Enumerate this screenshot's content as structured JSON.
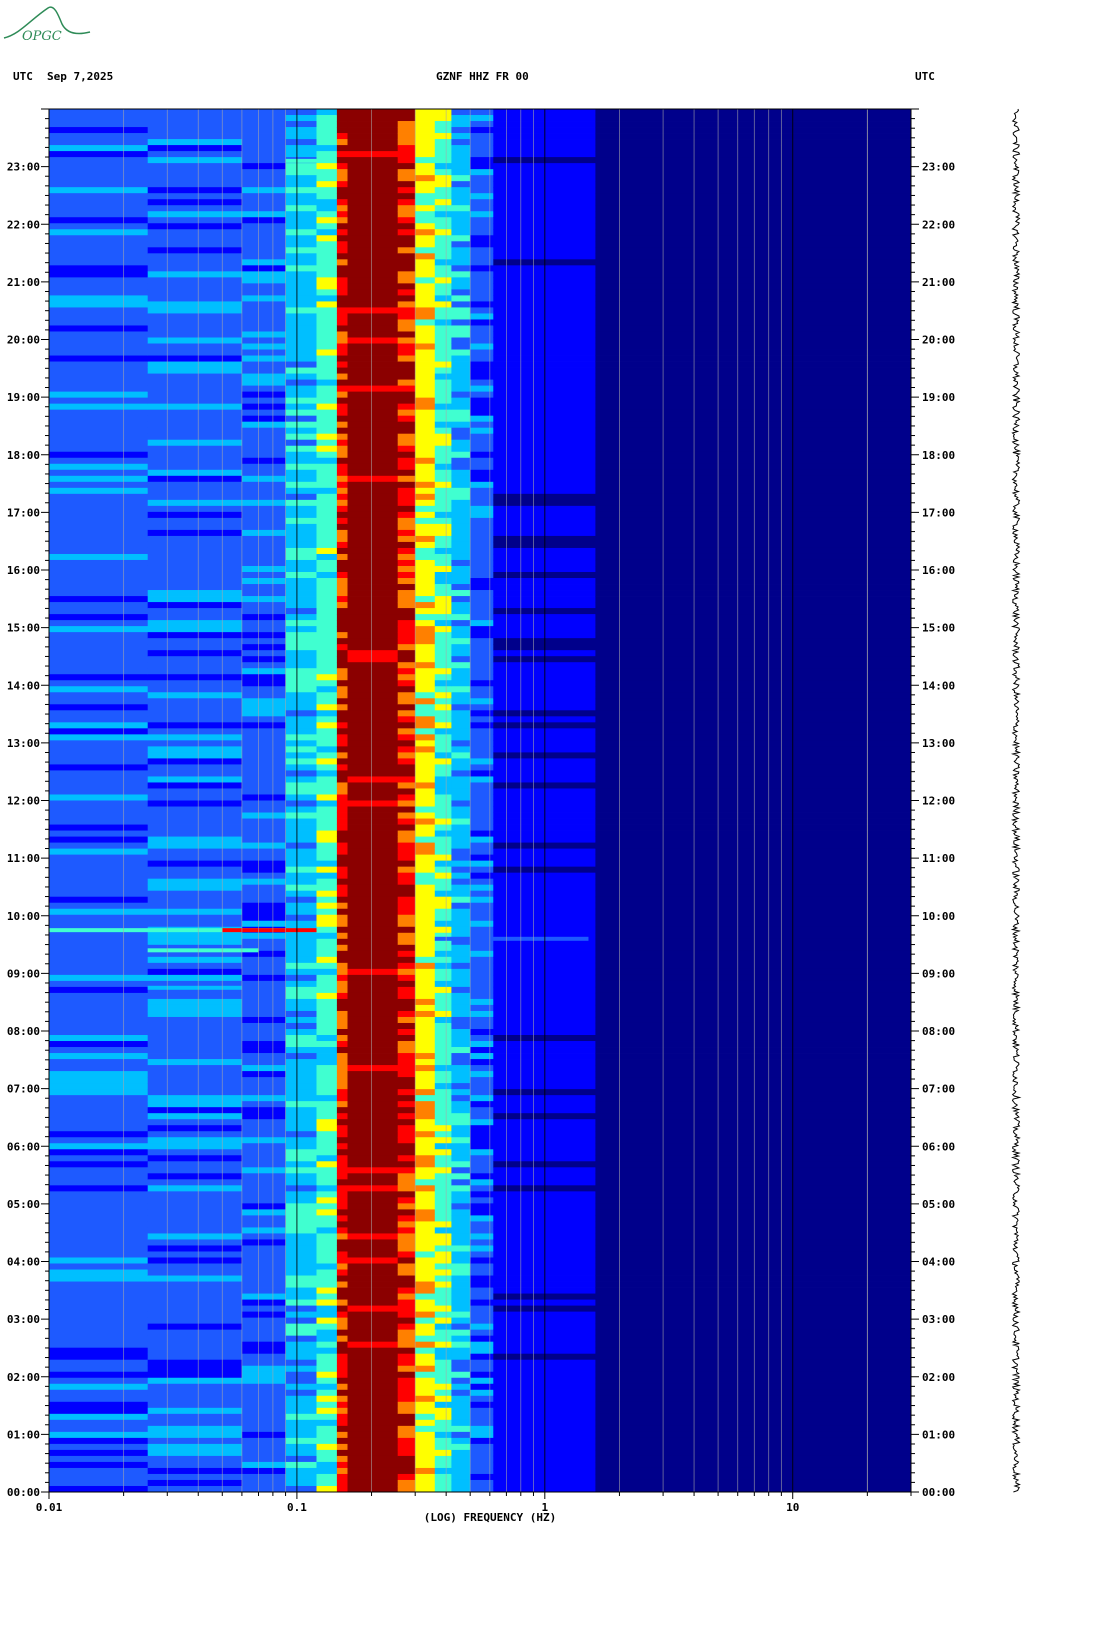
{
  "header": {
    "left_utc": "UTC",
    "date": "Sep 7,2025",
    "station": "GZNF HHZ FR 00",
    "right_utc": "UTC"
  },
  "logo": {
    "text": "OPGC",
    "color": "#2e8b57"
  },
  "chart_data": {
    "type": "heatmap",
    "title": "GZNF HHZ FR 00",
    "xlabel": "(LOG) FREQUENCY (HZ)",
    "x_scale": "log",
    "xlim": [
      0.01,
      30
    ],
    "x_ticks": [
      {
        "value": 0.01,
        "label": "0.01"
      },
      {
        "value": 0.1,
        "label": "0.1"
      },
      {
        "value": 1,
        "label": "1"
      },
      {
        "value": 10,
        "label": "10"
      }
    ],
    "y_ticks_left": [
      "23:00",
      "22:00",
      "21:00",
      "20:00",
      "19:00",
      "18:00",
      "17:00",
      "16:00",
      "15:00",
      "14:00",
      "13:00",
      "12:00",
      "11:00",
      "10:00",
      "09:00",
      "08:00",
      "07:00",
      "06:00",
      "05:00",
      "04:00",
      "03:00",
      "02:00",
      "01:00",
      "00:00"
    ],
    "y_ticks_right": [
      "23:00",
      "22:00",
      "21:00",
      "20:00",
      "19:00",
      "18:00",
      "17:00",
      "16:00",
      "15:00",
      "14:00",
      "13:00",
      "12:00",
      "11:00",
      "10:00",
      "09:00",
      "08:00",
      "07:00",
      "06:00",
      "05:00",
      "04:00",
      "03:00",
      "02:00",
      "01:00",
      "00:00"
    ],
    "ylim_hours": [
      0,
      24
    ],
    "colormap": [
      "#00008b",
      "#0000ff",
      "#1e5aff",
      "#00bfff",
      "#40ffd0",
      "#ffff00",
      "#ff8000",
      "#ff0000",
      "#8b0000"
    ],
    "bands": [
      {
        "from_hz": 0.01,
        "to_hz": 0.025,
        "level": 2
      },
      {
        "from_hz": 0.025,
        "to_hz": 0.06,
        "level": 2
      },
      {
        "from_hz": 0.06,
        "to_hz": 0.09,
        "level": 2
      },
      {
        "from_hz": 0.09,
        "to_hz": 0.12,
        "level": 3
      },
      {
        "from_hz": 0.12,
        "to_hz": 0.145,
        "level": 4
      },
      {
        "from_hz": 0.145,
        "to_hz": 0.16,
        "level": 7
      },
      {
        "from_hz": 0.16,
        "to_hz": 0.255,
        "level": 8
      },
      {
        "from_hz": 0.255,
        "to_hz": 0.3,
        "level": 7
      },
      {
        "from_hz": 0.3,
        "to_hz": 0.36,
        "level": 5
      },
      {
        "from_hz": 0.36,
        "to_hz": 0.42,
        "level": 4
      },
      {
        "from_hz": 0.42,
        "to_hz": 0.5,
        "level": 3
      },
      {
        "from_hz": 0.5,
        "to_hz": 0.62,
        "level": 2
      },
      {
        "from_hz": 0.62,
        "to_hz": 1.6,
        "level": 1
      },
      {
        "from_hz": 1.6,
        "to_hz": 30,
        "level": 0
      }
    ],
    "events": [
      {
        "hour": 9.75,
        "from_hz": 0.01,
        "to_hz": 0.12,
        "level": 4
      },
      {
        "hour": 9.75,
        "from_hz": 0.05,
        "to_hz": 0.12,
        "level": 7
      },
      {
        "hour": 9.4,
        "from_hz": 0.025,
        "to_hz": 0.07,
        "level": 4
      },
      {
        "hour": 8.75,
        "from_hz": 0.025,
        "to_hz": 0.06,
        "level": 3
      },
      {
        "hour": 9.6,
        "from_hz": 0.36,
        "to_hz": 1.5,
        "level": 2
      },
      {
        "hour": 23.1,
        "from_hz": 0.09,
        "to_hz": 0.12,
        "level": 4
      }
    ]
  }
}
